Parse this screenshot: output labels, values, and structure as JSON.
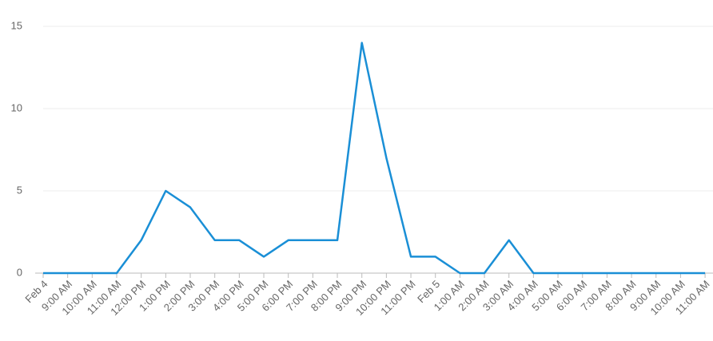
{
  "chart_data": {
    "type": "line",
    "categories": [
      "Feb 4",
      "9:00 AM",
      "10:00 AM",
      "11:00 AM",
      "12:00 PM",
      "1:00 PM",
      "2:00 PM",
      "3:00 PM",
      "4:00 PM",
      "5:00 PM",
      "6:00 PM",
      "7:00 PM",
      "8:00 PM",
      "9:00 PM",
      "10:00 PM",
      "11:00 PM",
      "Feb 5",
      "1:00 AM",
      "2:00 AM",
      "3:00 AM",
      "4:00 AM",
      "5:00 AM",
      "6:00 AM",
      "7:00 AM",
      "8:00 AM",
      "9:00 AM",
      "10:00 AM",
      "11:00 AM"
    ],
    "values": [
      0,
      0,
      0,
      0,
      2,
      5,
      4,
      2,
      2,
      1,
      2,
      2,
      2,
      14,
      7,
      1,
      1,
      0,
      0,
      2,
      0,
      0,
      0,
      0,
      0,
      0,
      0,
      0
    ],
    "color": "#1a8fd6",
    "ylim": [
      0,
      15
    ],
    "yticks": [
      0,
      5,
      10,
      15
    ],
    "grid": true
  }
}
